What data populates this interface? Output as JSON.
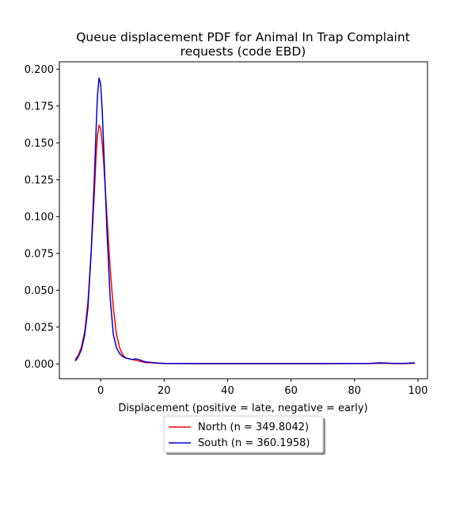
{
  "chart_data": {
    "type": "line",
    "title_line1": "Queue displacement PDF for Animal In Trap Complaint",
    "title_line2": "requests (code EBD)",
    "xlabel": "Displacement (positive = late, negative = early)",
    "ylabel": "",
    "xlim": [
      -13,
      103
    ],
    "ylim": [
      -0.01,
      0.205
    ],
    "x_ticks": [
      0,
      20,
      40,
      60,
      80,
      100
    ],
    "y_ticks": [
      0.0,
      0.025,
      0.05,
      0.075,
      0.1,
      0.125,
      0.15,
      0.175,
      0.2
    ],
    "y_tick_labels": [
      "0.000",
      "0.025",
      "0.050",
      "0.075",
      "0.100",
      "0.125",
      "0.150",
      "0.175",
      "0.200"
    ],
    "grid": false,
    "legend_position": "below-center",
    "series": [
      {
        "name": "North (n = 349.8042)",
        "color": "#ff0000",
        "points": [
          [
            -8,
            0.003
          ],
          [
            -7,
            0.006
          ],
          [
            -6,
            0.012
          ],
          [
            -5,
            0.022
          ],
          [
            -4,
            0.042
          ],
          [
            -3,
            0.075
          ],
          [
            -2,
            0.115
          ],
          [
            -1.5,
            0.138
          ],
          [
            -1,
            0.155
          ],
          [
            -0.5,
            0.162
          ],
          [
            0,
            0.16
          ],
          [
            0.5,
            0.15
          ],
          [
            1,
            0.135
          ],
          [
            2,
            0.1
          ],
          [
            3,
            0.065
          ],
          [
            4,
            0.038
          ],
          [
            5,
            0.02
          ],
          [
            6,
            0.011
          ],
          [
            7,
            0.006
          ],
          [
            8,
            0.004
          ],
          [
            10,
            0.003
          ],
          [
            12,
            0.002
          ],
          [
            14,
            0.001
          ],
          [
            16,
            0.0008
          ],
          [
            18,
            0.0005
          ],
          [
            20,
            0.0003
          ],
          [
            30,
            0.0002
          ],
          [
            50,
            0.0002
          ],
          [
            70,
            0.0002
          ],
          [
            85,
            0.0003
          ],
          [
            88,
            0.0005
          ],
          [
            92,
            0.0003
          ],
          [
            96,
            0.0003
          ],
          [
            99,
            0.0005
          ]
        ]
      },
      {
        "name": "South (n = 360.1958)",
        "color": "#0000cc",
        "points": [
          [
            -8,
            0.002
          ],
          [
            -7,
            0.005
          ],
          [
            -6,
            0.01
          ],
          [
            -5,
            0.02
          ],
          [
            -4,
            0.038
          ],
          [
            -3,
            0.075
          ],
          [
            -2,
            0.125
          ],
          [
            -1.5,
            0.155
          ],
          [
            -1,
            0.182
          ],
          [
            -0.5,
            0.194
          ],
          [
            0,
            0.19
          ],
          [
            0.5,
            0.172
          ],
          [
            1,
            0.145
          ],
          [
            2,
            0.09
          ],
          [
            3,
            0.045
          ],
          [
            4,
            0.02
          ],
          [
            5,
            0.011
          ],
          [
            6,
            0.007
          ],
          [
            7,
            0.005
          ],
          [
            8,
            0.004
          ],
          [
            10,
            0.003
          ],
          [
            11,
            0.0035
          ],
          [
            12,
            0.003
          ],
          [
            14,
            0.0015
          ],
          [
            16,
            0.001
          ],
          [
            18,
            0.0006
          ],
          [
            20,
            0.0004
          ],
          [
            30,
            0.0003
          ],
          [
            50,
            0.0003
          ],
          [
            70,
            0.0003
          ],
          [
            85,
            0.0004
          ],
          [
            88,
            0.0008
          ],
          [
            92,
            0.0004
          ],
          [
            96,
            0.0004
          ],
          [
            99,
            0.0008
          ]
        ]
      }
    ]
  }
}
